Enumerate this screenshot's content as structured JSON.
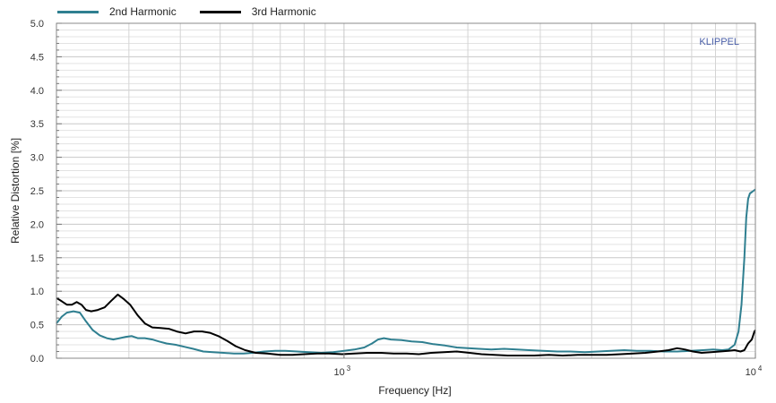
{
  "colors": {
    "second_harmonic": "#2f7f90",
    "third_harmonic": "#000000",
    "brand": "#4a5fa8",
    "grid_major": "#c8c8c8",
    "grid_minor": "#e3e3e3",
    "axis": "#888888"
  },
  "legend": [
    {
      "label": "2nd Harmonic",
      "color_key": "second_harmonic"
    },
    {
      "label": "3rd Harmonic",
      "color_key": "third_harmonic"
    }
  ],
  "brand_label": "KLIPPEL",
  "chart_data": {
    "type": "line",
    "xlabel": "Frequency  [Hz]",
    "ylabel": "Relative Distortion  [%]",
    "x_scale": "log",
    "xlim": [
      200,
      10000
    ],
    "ylim": [
      0,
      5.0
    ],
    "grid": true,
    "legend_position": "top-left",
    "y_ticks": [
      "0.0",
      "0.5",
      "1.0",
      "1.5",
      "2.0",
      "2.5",
      "3.0",
      "3.5",
      "4.0",
      "4.5",
      "5.0"
    ],
    "x_ticks": [
      {
        "value": 1000,
        "base": "10",
        "exp": "3"
      },
      {
        "value": 10000,
        "base": "10",
        "exp": "4"
      }
    ],
    "series": [
      {
        "name": "2nd Harmonic",
        "color_key": "second_harmonic",
        "points": [
          [
            200,
            0.52
          ],
          [
            206,
            0.62
          ],
          [
            212,
            0.68
          ],
          [
            220,
            0.7
          ],
          [
            228,
            0.68
          ],
          [
            236,
            0.55
          ],
          [
            245,
            0.42
          ],
          [
            255,
            0.34
          ],
          [
            265,
            0.3
          ],
          [
            275,
            0.28
          ],
          [
            285,
            0.3
          ],
          [
            295,
            0.32
          ],
          [
            305,
            0.33
          ],
          [
            315,
            0.3
          ],
          [
            328,
            0.3
          ],
          [
            342,
            0.28
          ],
          [
            355,
            0.25
          ],
          [
            370,
            0.22
          ],
          [
            390,
            0.2
          ],
          [
            410,
            0.17
          ],
          [
            430,
            0.14
          ],
          [
            455,
            0.1
          ],
          [
            480,
            0.09
          ],
          [
            510,
            0.08
          ],
          [
            540,
            0.07
          ],
          [
            570,
            0.07
          ],
          [
            600,
            0.08
          ],
          [
            640,
            0.1
          ],
          [
            680,
            0.11
          ],
          [
            720,
            0.11
          ],
          [
            770,
            0.1
          ],
          [
            820,
            0.09
          ],
          [
            880,
            0.08
          ],
          [
            940,
            0.09
          ],
          [
            1000,
            0.11
          ],
          [
            1060,
            0.13
          ],
          [
            1120,
            0.16
          ],
          [
            1170,
            0.22
          ],
          [
            1210,
            0.28
          ],
          [
            1250,
            0.3
          ],
          [
            1300,
            0.28
          ],
          [
            1380,
            0.27
          ],
          [
            1460,
            0.25
          ],
          [
            1550,
            0.24
          ],
          [
            1650,
            0.21
          ],
          [
            1760,
            0.19
          ],
          [
            1880,
            0.16
          ],
          [
            2000,
            0.15
          ],
          [
            2130,
            0.14
          ],
          [
            2280,
            0.13
          ],
          [
            2450,
            0.14
          ],
          [
            2630,
            0.13
          ],
          [
            2820,
            0.12
          ],
          [
            3050,
            0.11
          ],
          [
            3300,
            0.1
          ],
          [
            3550,
            0.1
          ],
          [
            3850,
            0.09
          ],
          [
            4150,
            0.1
          ],
          [
            4450,
            0.11
          ],
          [
            4800,
            0.12
          ],
          [
            5150,
            0.11
          ],
          [
            5550,
            0.11
          ],
          [
            6000,
            0.1
          ],
          [
            6450,
            0.1
          ],
          [
            6950,
            0.11
          ],
          [
            7450,
            0.12
          ],
          [
            7900,
            0.13
          ],
          [
            8300,
            0.12
          ],
          [
            8600,
            0.13
          ],
          [
            8900,
            0.2
          ],
          [
            9100,
            0.4
          ],
          [
            9250,
            0.8
          ],
          [
            9400,
            1.5
          ],
          [
            9500,
            2.1
          ],
          [
            9600,
            2.38
          ],
          [
            9700,
            2.46
          ],
          [
            9800,
            2.48
          ],
          [
            9900,
            2.5
          ],
          [
            10000,
            2.52
          ]
        ]
      },
      {
        "name": "3rd Harmonic",
        "color_key": "third_harmonic",
        "points": [
          [
            200,
            0.9
          ],
          [
            206,
            0.85
          ],
          [
            212,
            0.8
          ],
          [
            218,
            0.8
          ],
          [
            224,
            0.84
          ],
          [
            230,
            0.8
          ],
          [
            236,
            0.72
          ],
          [
            243,
            0.7
          ],
          [
            252,
            0.72
          ],
          [
            262,
            0.76
          ],
          [
            272,
            0.86
          ],
          [
            282,
            0.95
          ],
          [
            292,
            0.88
          ],
          [
            302,
            0.8
          ],
          [
            315,
            0.64
          ],
          [
            328,
            0.52
          ],
          [
            342,
            0.46
          ],
          [
            358,
            0.45
          ],
          [
            375,
            0.44
          ],
          [
            392,
            0.4
          ],
          [
            412,
            0.37
          ],
          [
            432,
            0.4
          ],
          [
            452,
            0.4
          ],
          [
            472,
            0.38
          ],
          [
            495,
            0.33
          ],
          [
            520,
            0.26
          ],
          [
            545,
            0.18
          ],
          [
            575,
            0.12
          ],
          [
            610,
            0.08
          ],
          [
            650,
            0.07
          ],
          [
            700,
            0.05
          ],
          [
            750,
            0.05
          ],
          [
            800,
            0.06
          ],
          [
            860,
            0.07
          ],
          [
            920,
            0.07
          ],
          [
            990,
            0.06
          ],
          [
            1060,
            0.07
          ],
          [
            1140,
            0.08
          ],
          [
            1230,
            0.08
          ],
          [
            1320,
            0.07
          ],
          [
            1420,
            0.07
          ],
          [
            1520,
            0.06
          ],
          [
            1630,
            0.08
          ],
          [
            1750,
            0.09
          ],
          [
            1880,
            0.1
          ],
          [
            2020,
            0.08
          ],
          [
            2160,
            0.06
          ],
          [
            2320,
            0.05
          ],
          [
            2500,
            0.04
          ],
          [
            2700,
            0.04
          ],
          [
            2900,
            0.04
          ],
          [
            3150,
            0.05
          ],
          [
            3400,
            0.04
          ],
          [
            3700,
            0.05
          ],
          [
            4000,
            0.05
          ],
          [
            4350,
            0.05
          ],
          [
            4700,
            0.06
          ],
          [
            5050,
            0.07
          ],
          [
            5400,
            0.08
          ],
          [
            5800,
            0.1
          ],
          [
            6150,
            0.12
          ],
          [
            6450,
            0.15
          ],
          [
            6750,
            0.13
          ],
          [
            7050,
            0.1
          ],
          [
            7400,
            0.08
          ],
          [
            7800,
            0.09
          ],
          [
            8200,
            0.1
          ],
          [
            8600,
            0.11
          ],
          [
            8900,
            0.12
          ],
          [
            9200,
            0.1
          ],
          [
            9400,
            0.12
          ],
          [
            9600,
            0.22
          ],
          [
            9800,
            0.28
          ],
          [
            9950,
            0.4
          ],
          [
            10000,
            0.42
          ]
        ]
      }
    ]
  }
}
